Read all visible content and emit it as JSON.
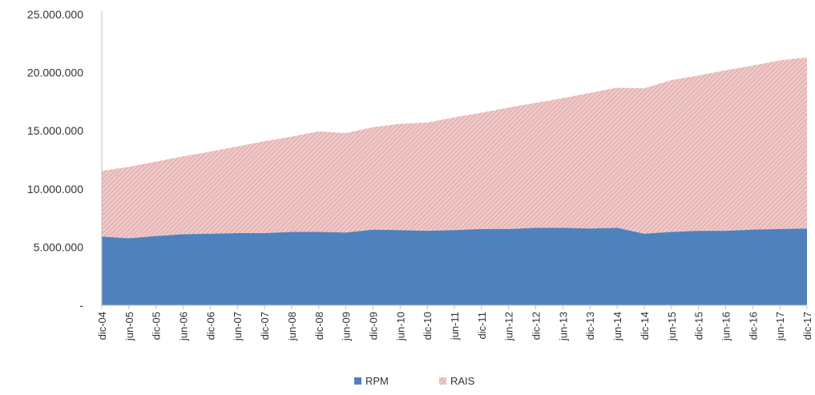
{
  "chart_data": {
    "type": "area",
    "stacked": true,
    "title": "",
    "xlabel": "",
    "ylabel": "",
    "ylim": [
      0,
      25000000
    ],
    "y_ticks": [
      "-",
      "5.000.000",
      "10.000.000",
      "15.000.000",
      "20.000.000",
      "25.000.000"
    ],
    "y_tick_values": [
      0,
      5000000,
      10000000,
      15000000,
      20000000,
      25000000
    ],
    "x_tick_labels": [
      "dic-04",
      "jun-05",
      "dic-05",
      "jun-06",
      "dic-06",
      "jun-07",
      "dic-07",
      "jun-08",
      "dic-08",
      "jun-09",
      "dic-09",
      "jun-10",
      "dic-10",
      "jun-11",
      "dic-11",
      "jun-12",
      "dic-12",
      "jun-13",
      "dic-13",
      "jun-14",
      "dic-14",
      "jun-15",
      "dic-15",
      "jun-16",
      "dic-16",
      "jun-17",
      "dic-17"
    ],
    "x": [
      "dic-04",
      "jun-05",
      "dic-05",
      "jun-06",
      "dic-06",
      "jun-07",
      "dic-07",
      "jun-08",
      "dic-08",
      "jun-09",
      "dic-09",
      "jun-10",
      "dic-10",
      "jun-11",
      "dic-11",
      "jun-12",
      "dic-12",
      "jun-13",
      "dic-13",
      "jun-14",
      "dic-14",
      "jun-15",
      "dic-15",
      "jun-16",
      "dic-16",
      "jun-17",
      "dic-17"
    ],
    "series": [
      {
        "name": "RPM",
        "color": "#4f81bd",
        "values": [
          5900000,
          5750000,
          5950000,
          6100000,
          6150000,
          6200000,
          6200000,
          6300000,
          6300000,
          6250000,
          6500000,
          6450000,
          6400000,
          6450000,
          6550000,
          6550000,
          6650000,
          6650000,
          6600000,
          6650000,
          6150000,
          6300000,
          6400000,
          6400000,
          6500000,
          6550000,
          6600000
        ]
      },
      {
        "name": "RAIS",
        "color": "#e6b0b0",
        "totals": [
          11550000,
          11900000,
          12350000,
          12800000,
          13200000,
          13650000,
          14100000,
          14500000,
          14950000,
          14800000,
          15300000,
          15600000,
          15700000,
          16150000,
          16550000,
          17000000,
          17400000,
          17800000,
          18250000,
          18700000,
          18650000,
          19350000,
          19750000,
          20200000,
          20600000,
          21050000,
          21300000
        ]
      }
    ],
    "legend": {
      "position": "bottom",
      "items": [
        "RPM",
        "RAIS"
      ]
    },
    "grid": false
  }
}
